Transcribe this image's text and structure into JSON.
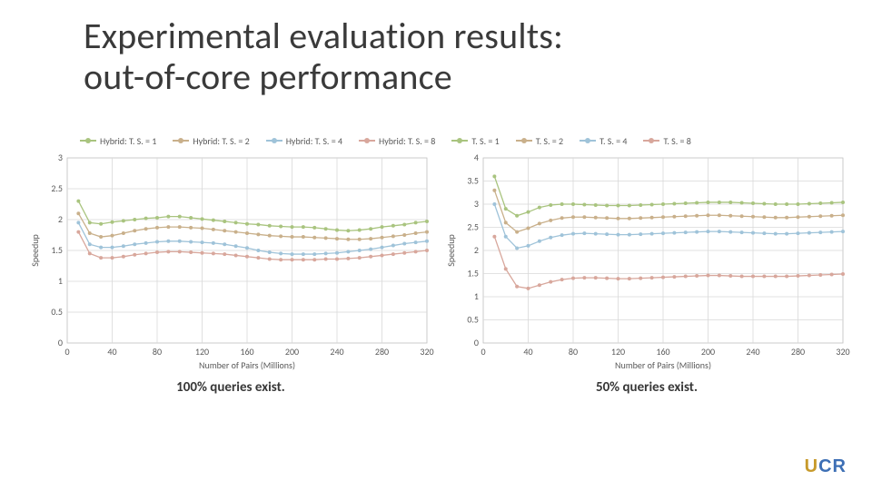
{
  "title_line1": "Experimental evaluation results:",
  "title_line2": "out-of-core performance",
  "legend": {
    "items": [
      {
        "label": "Hybrid: T. S. = 1",
        "color": "#a9c47f"
      },
      {
        "label": "Hybrid: T. S. = 2",
        "color": "#c9b08b"
      },
      {
        "label": "Hybrid: T. S. = 4",
        "color": "#9fc3d9"
      },
      {
        "label": "Hybrid: T. S. = 8",
        "color": "#d8a79c"
      },
      {
        "label": "T. S. = 1",
        "color": "#a9c47f"
      },
      {
        "label": "T. S. = 2",
        "color": "#c9b08b"
      },
      {
        "label": "T. S. = 4",
        "color": "#9fc3d9"
      },
      {
        "label": "T. S. = 8",
        "color": "#d8a79c"
      }
    ]
  },
  "chart_common": {
    "x": [
      10,
      20,
      30,
      40,
      50,
      60,
      70,
      80,
      90,
      100,
      110,
      120,
      130,
      140,
      150,
      160,
      170,
      180,
      190,
      200,
      210,
      220,
      230,
      240,
      250,
      260,
      270,
      280,
      290,
      300,
      310,
      320
    ],
    "xlim": [
      0,
      320
    ],
    "xtick_step": 40,
    "xlabel": "Number of Pairs (Millions)",
    "ylabel": "Speedup",
    "plot_area_bg": "#ffffff",
    "grid_color": "#d9d9d9",
    "border_color": "#bfbfbf",
    "axis_label_color": "#595959",
    "tick_fontsize": 10,
    "label_fontsize": 10,
    "line_width": 1.3,
    "marker_radius": 2.0
  },
  "left": {
    "caption": "100% queries exist.",
    "ylim": [
      0,
      3
    ],
    "ytick_step": 0.5,
    "series": [
      {
        "name": "Hybrid: T. S. = 1",
        "color": "#a9c47f",
        "y": [
          2.3,
          1.95,
          1.93,
          1.96,
          1.98,
          2.0,
          2.02,
          2.03,
          2.05,
          2.05,
          2.03,
          2.01,
          1.99,
          1.97,
          1.95,
          1.93,
          1.92,
          1.9,
          1.89,
          1.88,
          1.88,
          1.87,
          1.85,
          1.83,
          1.82,
          1.83,
          1.85,
          1.88,
          1.9,
          1.92,
          1.95,
          1.97
        ]
      },
      {
        "name": "Hybrid: T. S. = 2",
        "color": "#c9b08b",
        "y": [
          2.1,
          1.78,
          1.72,
          1.74,
          1.78,
          1.82,
          1.85,
          1.87,
          1.88,
          1.88,
          1.87,
          1.86,
          1.84,
          1.82,
          1.8,
          1.78,
          1.76,
          1.74,
          1.73,
          1.72,
          1.72,
          1.71,
          1.7,
          1.69,
          1.68,
          1.68,
          1.69,
          1.71,
          1.73,
          1.75,
          1.78,
          1.8
        ]
      },
      {
        "name": "Hybrid: T. S. = 4",
        "color": "#9fc3d9",
        "y": [
          1.95,
          1.6,
          1.55,
          1.55,
          1.57,
          1.6,
          1.62,
          1.64,
          1.65,
          1.65,
          1.64,
          1.63,
          1.62,
          1.6,
          1.57,
          1.54,
          1.5,
          1.47,
          1.45,
          1.44,
          1.44,
          1.44,
          1.45,
          1.46,
          1.48,
          1.5,
          1.52,
          1.55,
          1.58,
          1.61,
          1.63,
          1.65
        ]
      },
      {
        "name": "Hybrid: T. S. = 8",
        "color": "#d8a79c",
        "y": [
          1.8,
          1.45,
          1.38,
          1.38,
          1.4,
          1.43,
          1.45,
          1.47,
          1.48,
          1.48,
          1.47,
          1.46,
          1.45,
          1.44,
          1.42,
          1.4,
          1.38,
          1.36,
          1.35,
          1.35,
          1.35,
          1.35,
          1.36,
          1.36,
          1.37,
          1.38,
          1.4,
          1.42,
          1.44,
          1.46,
          1.48,
          1.5
        ]
      }
    ]
  },
  "right": {
    "caption": "50% queries exist.",
    "ylim": [
      0,
      4
    ],
    "ytick_step": 0.5,
    "series": [
      {
        "name": "T. S. = 1",
        "color": "#a9c47f",
        "y": [
          3.6,
          2.9,
          2.75,
          2.83,
          2.93,
          2.98,
          3.0,
          3.0,
          2.99,
          2.98,
          2.97,
          2.97,
          2.97,
          2.98,
          2.99,
          3.0,
          3.01,
          3.02,
          3.03,
          3.04,
          3.04,
          3.04,
          3.03,
          3.02,
          3.01,
          3.0,
          3.0,
          3.0,
          3.01,
          3.02,
          3.03,
          3.04
        ]
      },
      {
        "name": "T. S. = 2",
        "color": "#c9b08b",
        "y": [
          3.3,
          2.6,
          2.4,
          2.48,
          2.58,
          2.65,
          2.7,
          2.72,
          2.72,
          2.71,
          2.7,
          2.69,
          2.69,
          2.7,
          2.71,
          2.72,
          2.73,
          2.74,
          2.75,
          2.76,
          2.76,
          2.75,
          2.74,
          2.73,
          2.72,
          2.71,
          2.71,
          2.72,
          2.73,
          2.74,
          2.75,
          2.76
        ]
      },
      {
        "name": "T. S. = 4",
        "color": "#9fc3d9",
        "y": [
          3.0,
          2.3,
          2.05,
          2.1,
          2.2,
          2.28,
          2.33,
          2.36,
          2.37,
          2.36,
          2.35,
          2.34,
          2.34,
          2.35,
          2.36,
          2.37,
          2.38,
          2.39,
          2.4,
          2.41,
          2.41,
          2.4,
          2.39,
          2.38,
          2.37,
          2.36,
          2.36,
          2.37,
          2.38,
          2.39,
          2.4,
          2.41
        ]
      },
      {
        "name": "T. S. = 8",
        "color": "#d8a79c",
        "y": [
          2.3,
          1.6,
          1.22,
          1.18,
          1.25,
          1.32,
          1.37,
          1.4,
          1.41,
          1.41,
          1.4,
          1.39,
          1.39,
          1.4,
          1.41,
          1.42,
          1.43,
          1.44,
          1.45,
          1.46,
          1.46,
          1.45,
          1.44,
          1.44,
          1.44,
          1.44,
          1.44,
          1.45,
          1.46,
          1.47,
          1.48,
          1.49
        ]
      }
    ]
  },
  "logo": {
    "u": "U",
    "c": "C",
    "r": "R"
  }
}
